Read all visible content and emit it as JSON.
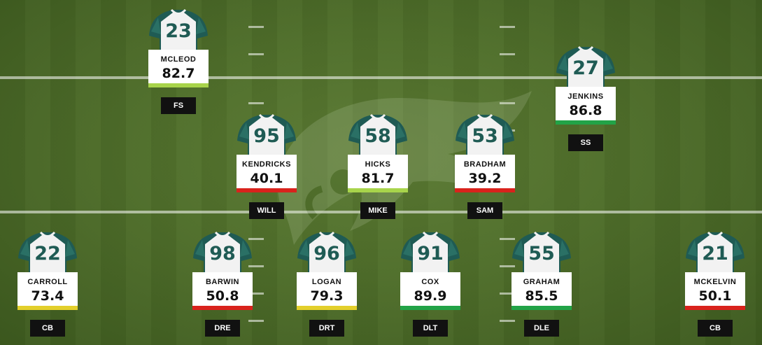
{
  "colors": {
    "elite": "#22a347",
    "good": "#a8d44b",
    "average": "#e3cf2b",
    "poor": "#d9221c",
    "jersey_number": "#1f5b54"
  },
  "players": [
    {
      "key": "mcleod",
      "number": "23",
      "name": "MCLEOD",
      "grade": "82.7",
      "position": "FS",
      "tier": "good",
      "icon": "jersey-icon"
    },
    {
      "key": "jenkins",
      "number": "27",
      "name": "JENKINS",
      "grade": "86.8",
      "position": "SS",
      "tier": "elite",
      "icon": "jersey-icon"
    },
    {
      "key": "kendricks",
      "number": "95",
      "name": "KENDRICKS",
      "grade": "40.1",
      "position": "WILL",
      "tier": "poor",
      "icon": "jersey-icon"
    },
    {
      "key": "hicks",
      "number": "58",
      "name": "HICKS",
      "grade": "81.7",
      "position": "MIKE",
      "tier": "good",
      "icon": "jersey-icon"
    },
    {
      "key": "bradham",
      "number": "53",
      "name": "BRADHAM",
      "grade": "39.2",
      "position": "SAM",
      "tier": "poor",
      "icon": "jersey-icon"
    },
    {
      "key": "carroll",
      "number": "22",
      "name": "CARROLL",
      "grade": "73.4",
      "position": "CB",
      "tier": "average",
      "icon": "jersey-icon"
    },
    {
      "key": "barwin",
      "number": "98",
      "name": "BARWIN",
      "grade": "50.8",
      "position": "DRE",
      "tier": "poor",
      "icon": "jersey-icon"
    },
    {
      "key": "logan",
      "number": "96",
      "name": "LOGAN",
      "grade": "79.3",
      "position": "DRT",
      "tier": "average",
      "icon": "jersey-icon"
    },
    {
      "key": "cox",
      "number": "91",
      "name": "COX",
      "grade": "89.9",
      "position": "DLT",
      "tier": "elite",
      "icon": "jersey-icon"
    },
    {
      "key": "graham",
      "number": "55",
      "name": "GRAHAM",
      "grade": "85.5",
      "position": "DLE",
      "tier": "elite",
      "icon": "jersey-icon"
    },
    {
      "key": "mckelvin",
      "number": "21",
      "name": "MCKELVIN",
      "grade": "50.1",
      "position": "CB",
      "tier": "poor",
      "icon": "jersey-icon"
    }
  ]
}
